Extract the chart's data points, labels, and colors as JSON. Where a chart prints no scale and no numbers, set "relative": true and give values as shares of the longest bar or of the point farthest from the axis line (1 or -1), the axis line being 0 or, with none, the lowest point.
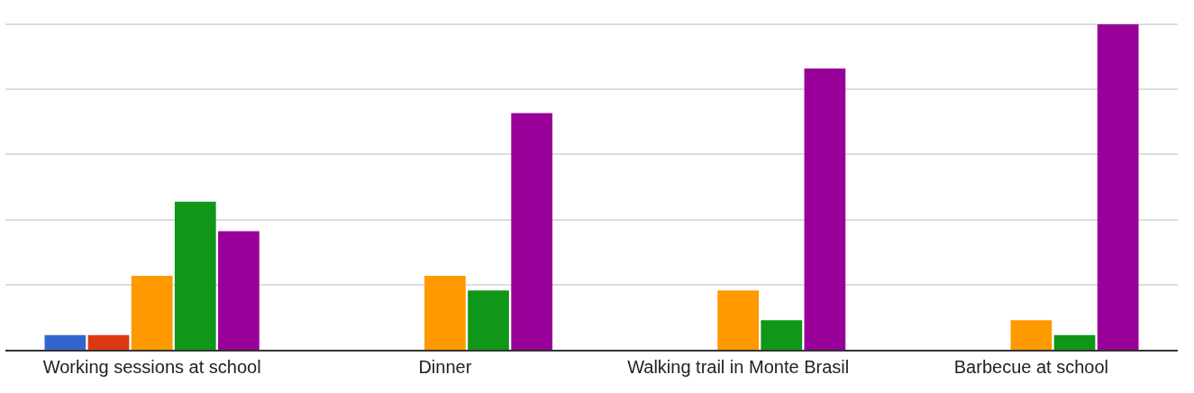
{
  "chart_data": {
    "type": "bar",
    "relative": true,
    "grid": true,
    "categories": [
      "Working sessions at school",
      "Dinner",
      "Walking trail in Monte Brasil",
      "Barbecue at school"
    ],
    "series": [
      {
        "color": "#3366cc",
        "values": [
          0.045,
          0,
          0,
          0
        ]
      },
      {
        "color": "#dc3912",
        "values": [
          0.045,
          0,
          0,
          0
        ]
      },
      {
        "color": "#ff9900",
        "values": [
          0.227,
          0.227,
          0.182,
          0.091
        ]
      },
      {
        "color": "#109618",
        "values": [
          0.455,
          0.182,
          0.091,
          0.045
        ]
      },
      {
        "color": "#990099",
        "values": [
          0.364,
          0.727,
          0.864,
          1
        ]
      }
    ]
  }
}
